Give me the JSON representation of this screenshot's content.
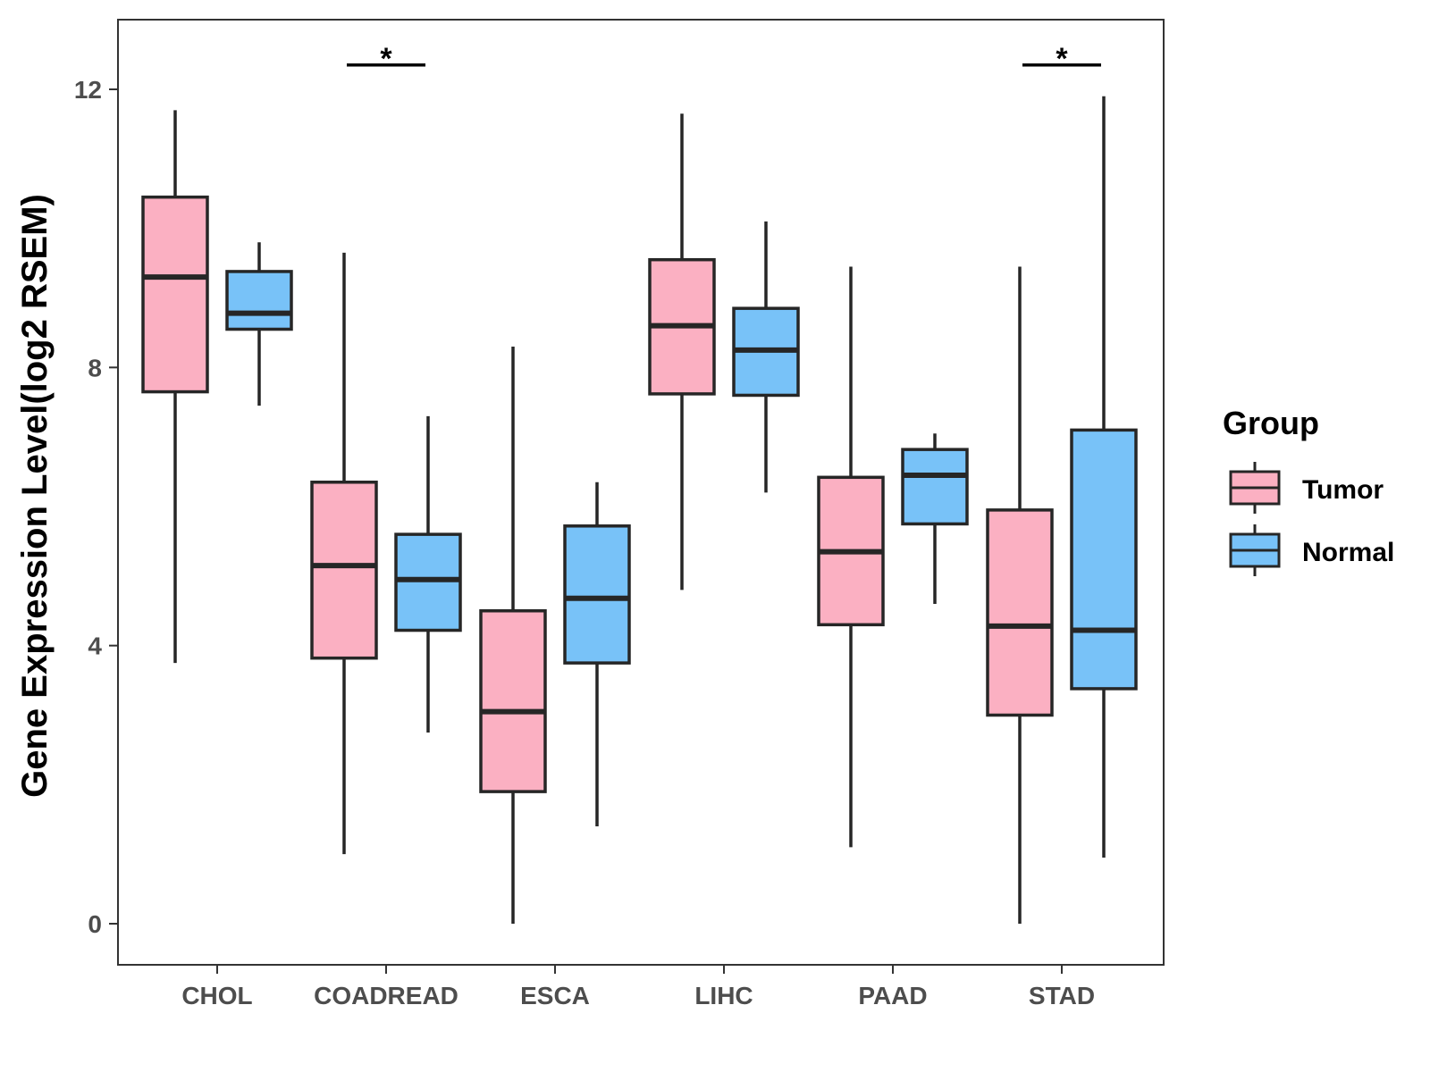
{
  "chart_data": {
    "type": "boxplot",
    "ylabel": "Gene Expression Level(log2 RSEM)",
    "xlabel": "",
    "ylim": [
      -0.6,
      13.0
    ],
    "yticks": [
      0,
      4,
      8,
      12
    ],
    "ytick_labels": [
      "0",
      "4",
      "8",
      "12"
    ],
    "categories": [
      "CHOL",
      "COADREAD",
      "ESCA",
      "LIHC",
      "PAAD",
      "STAD"
    ],
    "legend": {
      "title": "Group",
      "position": "right",
      "entries": [
        "Tumor",
        "Normal"
      ]
    },
    "colors": {
      "Tumor": "#FBB0C2",
      "Normal": "#78C2F8",
      "stroke": "#262626"
    },
    "series": [
      {
        "name": "Tumor",
        "boxes": [
          {
            "whisker_low": 3.75,
            "q1": 7.65,
            "median": 9.3,
            "q3": 10.45,
            "whisker_high": 11.7
          },
          {
            "whisker_low": 1.0,
            "q1": 3.82,
            "median": 5.15,
            "q3": 6.35,
            "whisker_high": 9.65
          },
          {
            "whisker_low": 0.0,
            "q1": 1.9,
            "median": 3.05,
            "q3": 4.5,
            "whisker_high": 8.3
          },
          {
            "whisker_low": 4.8,
            "q1": 7.62,
            "median": 8.6,
            "q3": 9.55,
            "whisker_high": 11.65
          },
          {
            "whisker_low": 1.1,
            "q1": 4.3,
            "median": 5.35,
            "q3": 6.42,
            "whisker_high": 9.45
          },
          {
            "whisker_low": 0.0,
            "q1": 3.0,
            "median": 4.28,
            "q3": 5.95,
            "whisker_high": 9.45
          }
        ]
      },
      {
        "name": "Normal",
        "boxes": [
          {
            "whisker_low": 7.45,
            "q1": 8.55,
            "median": 8.78,
            "q3": 9.38,
            "whisker_high": 9.8
          },
          {
            "whisker_low": 2.75,
            "q1": 4.22,
            "median": 4.95,
            "q3": 5.6,
            "whisker_high": 7.3
          },
          {
            "whisker_low": 1.4,
            "q1": 3.75,
            "median": 4.68,
            "q3": 5.72,
            "whisker_high": 6.35
          },
          {
            "whisker_low": 6.2,
            "q1": 7.6,
            "median": 8.25,
            "q3": 8.85,
            "whisker_high": 10.1
          },
          {
            "whisker_low": 4.6,
            "q1": 5.75,
            "median": 6.45,
            "q3": 6.82,
            "whisker_high": 7.05
          },
          {
            "whisker_low": 0.95,
            "q1": 3.38,
            "median": 4.22,
            "q3": 7.1,
            "whisker_high": 11.9
          }
        ]
      }
    ],
    "annotations": [
      {
        "category": "COADREAD",
        "label": "*",
        "y": 12.35
      },
      {
        "category": "STAD",
        "label": "*",
        "y": 12.35
      }
    ]
  }
}
